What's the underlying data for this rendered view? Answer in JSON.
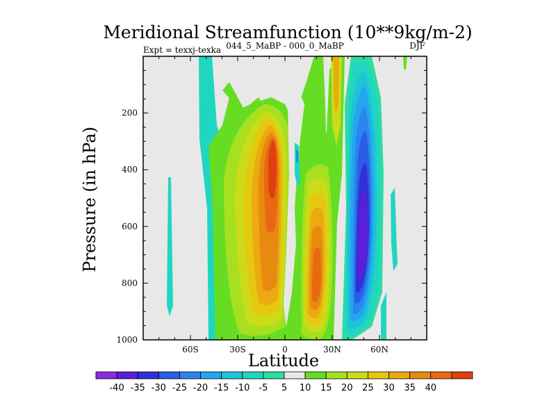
{
  "chart_data": {
    "type": "contour",
    "title": "Meridional Streamfunction (10**9kg/m-2)",
    "subtitle_left": "Expt = texxj-texka",
    "subtitle_center": "044_5_MaBP - 000_0_MaBP",
    "subtitle_right": "DJF",
    "xlabel": "Latitude",
    "ylabel": "Pressure (in hPa)",
    "xlim": [
      -90,
      90
    ],
    "ylim": [
      1000,
      0
    ],
    "x_ticks": [
      {
        "value": -60,
        "label": "60S"
      },
      {
        "value": -30,
        "label": "30S"
      },
      {
        "value": 0,
        "label": "0"
      },
      {
        "value": 30,
        "label": "30N"
      },
      {
        "value": 60,
        "label": "60N"
      }
    ],
    "y_ticks": [
      {
        "value": 200,
        "label": "200"
      },
      {
        "value": 400,
        "label": "400"
      },
      {
        "value": 600,
        "label": "600"
      },
      {
        "value": 800,
        "label": "800"
      },
      {
        "value": 1000,
        "label": "1000"
      }
    ],
    "colorbar": {
      "levels": [
        -40,
        -35,
        -30,
        -25,
        -20,
        -15,
        -10,
        -5,
        5,
        10,
        15,
        20,
        25,
        30,
        35,
        40
      ],
      "labels": [
        "-40",
        "-35",
        "-30",
        "-25",
        "-20",
        "-15",
        "-10",
        "-5",
        "5",
        "10",
        "15",
        "20",
        "25",
        "30",
        "35",
        "40"
      ],
      "colors": [
        "#8a2be2",
        "#5a1fd6",
        "#3030d8",
        "#2a5ee6",
        "#2a86ee",
        "#22a6f0",
        "#1fc2d8",
        "#20d6c0",
        "#30dca0",
        "#e8e8e8",
        "#66dd22",
        "#a6e020",
        "#cadc18",
        "#e6c810",
        "#eaaa10",
        "#e88a10",
        "#e86a10",
        "#e04010"
      ]
    },
    "features": [
      {
        "name": "positive cell north of equator (max ~40 near 15N, 750 hPa)",
        "lat": 15,
        "p": 750,
        "value": 40
      },
      {
        "name": "positive cell south of equator (max ~40 near 8S, 350 hPa)",
        "lat": -8,
        "p": 350,
        "value": 40
      },
      {
        "name": "negative cell (min ~-40 near 45N, 550 hPa)",
        "lat": 45,
        "p": 550,
        "value": -40
      }
    ]
  },
  "colors": {
    "background": "#e8e8e8",
    "frame": "#000000"
  }
}
